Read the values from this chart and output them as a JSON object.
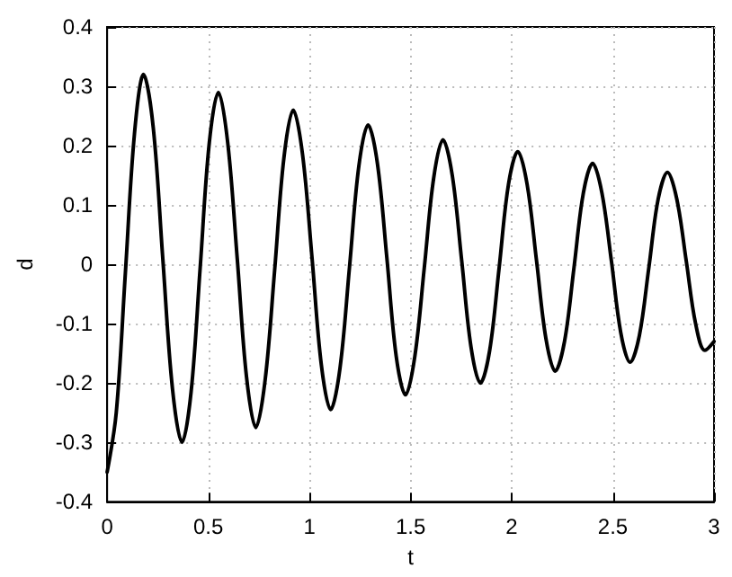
{
  "chart_data": {
    "type": "line",
    "xlabel": "t",
    "ylabel": "d",
    "xlim": [
      0,
      3
    ],
    "xticks": [
      0,
      0.5,
      1,
      1.5,
      2,
      2.5,
      3
    ],
    "ylim": [
      -0.4,
      0.4
    ],
    "yticks": [
      -0.4,
      -0.3,
      -0.2,
      -0.1,
      0,
      0.1,
      0.2,
      0.3,
      0.4
    ],
    "grid": true,
    "marker": "none",
    "line_style": "solid",
    "series": [
      {
        "color": "#000000",
        "x": [
          0,
          0.045,
          0.09,
          0.135,
          0.18,
          0.228,
          0.275,
          0.323,
          0.37,
          0.415,
          0.46,
          0.505,
          0.55,
          0.596,
          0.643,
          0.689,
          0.735,
          0.781,
          0.828,
          0.874,
          0.92,
          0.966,
          1.013,
          1.059,
          1.105,
          1.151,
          1.198,
          1.244,
          1.29,
          1.336,
          1.383,
          1.429,
          1.475,
          1.521,
          1.568,
          1.614,
          1.66,
          1.706,
          1.753,
          1.799,
          1.845,
          1.891,
          1.938,
          1.984,
          2.03,
          2.076,
          2.123,
          2.169,
          2.215,
          2.261,
          2.308,
          2.354,
          2.4,
          2.446,
          2.493,
          2.539,
          2.585,
          2.631,
          2.678,
          2.724,
          2.77,
          2.816,
          2.863,
          2.909,
          2.955,
          3
        ],
        "values": [
          -0.35,
          -0.25,
          -0.015,
          0.22,
          0.32,
          0.23,
          0.01,
          -0.21,
          -0.3,
          -0.215,
          -0.005,
          0.205,
          0.29,
          0.205,
          0.01,
          -0.19,
          -0.275,
          -0.195,
          -0.01,
          0.18,
          0.26,
          0.185,
          0.01,
          -0.17,
          -0.245,
          -0.175,
          -0.005,
          0.165,
          0.235,
          0.17,
          0.01,
          -0.155,
          -0.22,
          -0.155,
          -0.005,
          0.145,
          0.21,
          0.15,
          0.005,
          -0.14,
          -0.2,
          -0.145,
          -0.005,
          0.135,
          0.19,
          0.135,
          0.005,
          -0.125,
          -0.18,
          -0.13,
          -0.005,
          0.12,
          0.17,
          0.12,
          0.005,
          -0.115,
          -0.165,
          -0.12,
          -0.005,
          0.11,
          0.155,
          0.11,
          0.005,
          -0.1,
          -0.145,
          -0.13
        ]
      }
    ]
  }
}
